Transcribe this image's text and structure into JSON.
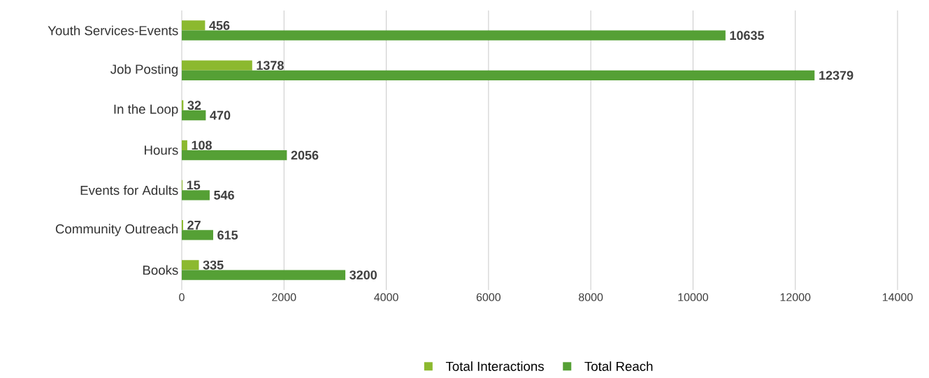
{
  "chart_data": {
    "type": "bar",
    "orientation": "horizontal",
    "categories": [
      "Youth Services-Events",
      "Job Posting",
      "In the Loop",
      "Hours",
      "Events for Adults",
      "Community Outreach",
      "Books"
    ],
    "series": [
      {
        "name": "Total Interactions",
        "color": "#8cb92f",
        "values": [
          456,
          1378,
          32,
          108,
          15,
          27,
          335
        ]
      },
      {
        "name": "Total Reach",
        "color": "#55a035",
        "values": [
          10635,
          12379,
          470,
          2056,
          546,
          615,
          3200
        ]
      }
    ],
    "xlim": [
      0,
      14000
    ],
    "xticks": [
      0,
      2000,
      4000,
      6000,
      8000,
      10000,
      12000,
      14000
    ],
    "grid": "x",
    "legend": "bottom",
    "data_labels": true
  }
}
